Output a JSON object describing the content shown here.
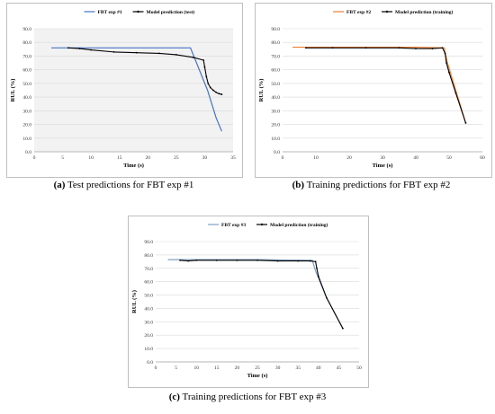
{
  "charts": [
    {
      "caption_tag": "(a)",
      "caption_text": "Test predictions for FBT exp #1",
      "chart_data": {
        "type": "line",
        "xlabel": "Time (s)",
        "ylabel": "RUL (%)",
        "xlim": [
          0,
          35
        ],
        "ylim": [
          0,
          90
        ],
        "xticks": [
          "0",
          "5",
          "10",
          "15",
          "20",
          "25",
          "30",
          "35"
        ],
        "yticks": [
          "0.0",
          "10.0",
          "20.0",
          "30.0",
          "40.0",
          "50.0",
          "60.0",
          "70.0",
          "80.0",
          "90.0"
        ],
        "plot_background": "#f2f2f2",
        "legend_position": "top",
        "series": [
          {
            "name": "FBT exp #1",
            "color": "#4472c4",
            "marker": "none",
            "x": [
              3,
              27.5,
              30.5,
              32,
              33
            ],
            "y": [
              76,
              76,
              45,
              25,
              15
            ]
          },
          {
            "name": "Model prediction (test)",
            "color": "#000000",
            "marker": "dot",
            "x": [
              6,
              8,
              10,
              14,
              18,
              22,
              25,
              28,
              29.8,
              30,
              30.3,
              30.6,
              31,
              31.5,
              32,
              32.5,
              33
            ],
            "y": [
              76,
              75.5,
              74.5,
              73,
              72.5,
              72,
              71,
              69,
              67,
              62,
              55,
              50,
              47,
              45,
              43.5,
              42.5,
              42
            ]
          }
        ]
      }
    },
    {
      "caption_tag": "(b)",
      "caption_text": "Training predictions for FBT exp #2",
      "chart_data": {
        "type": "line",
        "xlabel": "Time (s)",
        "ylabel": "RUL (%)",
        "xlim": [
          0,
          60
        ],
        "ylim": [
          0,
          90
        ],
        "xticks": [
          "0",
          "10",
          "20",
          "30",
          "40",
          "50",
          "60"
        ],
        "yticks": [
          "0.0",
          "10.0",
          "20.0",
          "30.0",
          "40.0",
          "50.0",
          "60.0",
          "70.0",
          "80.0",
          "90.0"
        ],
        "plot_background": "#ffffff",
        "legend_position": "top",
        "series": [
          {
            "name": "FBT exp #2",
            "color": "#ed7d31",
            "marker": "none",
            "x": [
              3,
              20,
              40,
              48.5,
              49.5,
              52,
              55
            ],
            "y": [
              76.5,
              76.5,
              76.5,
              76,
              65,
              45,
              21
            ]
          },
          {
            "name": "Model prediction (training)",
            "color": "#000000",
            "marker": "dot",
            "x": [
              7,
              15,
              25,
              35,
              40,
              45,
              48,
              48.8,
              49.2,
              50,
              52,
              55
            ],
            "y": [
              76,
              76,
              76,
              76,
              75.5,
              75.5,
              76,
              72,
              65,
              58,
              43,
              21
            ]
          }
        ]
      }
    },
    {
      "caption_tag": "(c)",
      "caption_text": "Training predictions for FBT exp #3",
      "chart_data": {
        "type": "line",
        "xlabel": "Time (s)",
        "ylabel": "RUL (%)",
        "xlim": [
          0,
          50
        ],
        "ylim": [
          0,
          90
        ],
        "xticks": [
          "0",
          "5",
          "10",
          "15",
          "20",
          "25",
          "30",
          "35",
          "40",
          "45",
          "50"
        ],
        "yticks": [
          "0.0",
          "10.0",
          "20.0",
          "30.0",
          "40.0",
          "50.0",
          "60.0",
          "70.0",
          "80.0",
          "90.0"
        ],
        "plot_background": "#ffffff",
        "legend_position": "top",
        "series": [
          {
            "name": "FBT exp #3",
            "color": "#7f9fbf",
            "marker": "none",
            "x": [
              3,
              15,
              25,
              38.5,
              39.3,
              42,
              46
            ],
            "y": [
              76.5,
              76.5,
              76.5,
              76,
              68,
              48,
              25
            ]
          },
          {
            "name": "Model prediction (training)",
            "color": "#000000",
            "marker": "dot",
            "x": [
              6,
              8,
              10,
              15,
              20,
              25,
              30,
              35,
              38,
              39.3,
              39.6,
              40,
              42,
              46
            ],
            "y": [
              76,
              75.5,
              76,
              76,
              76,
              76,
              75.5,
              75.5,
              75.5,
              75,
              70,
              64,
              48,
              25
            ]
          }
        ]
      }
    }
  ]
}
